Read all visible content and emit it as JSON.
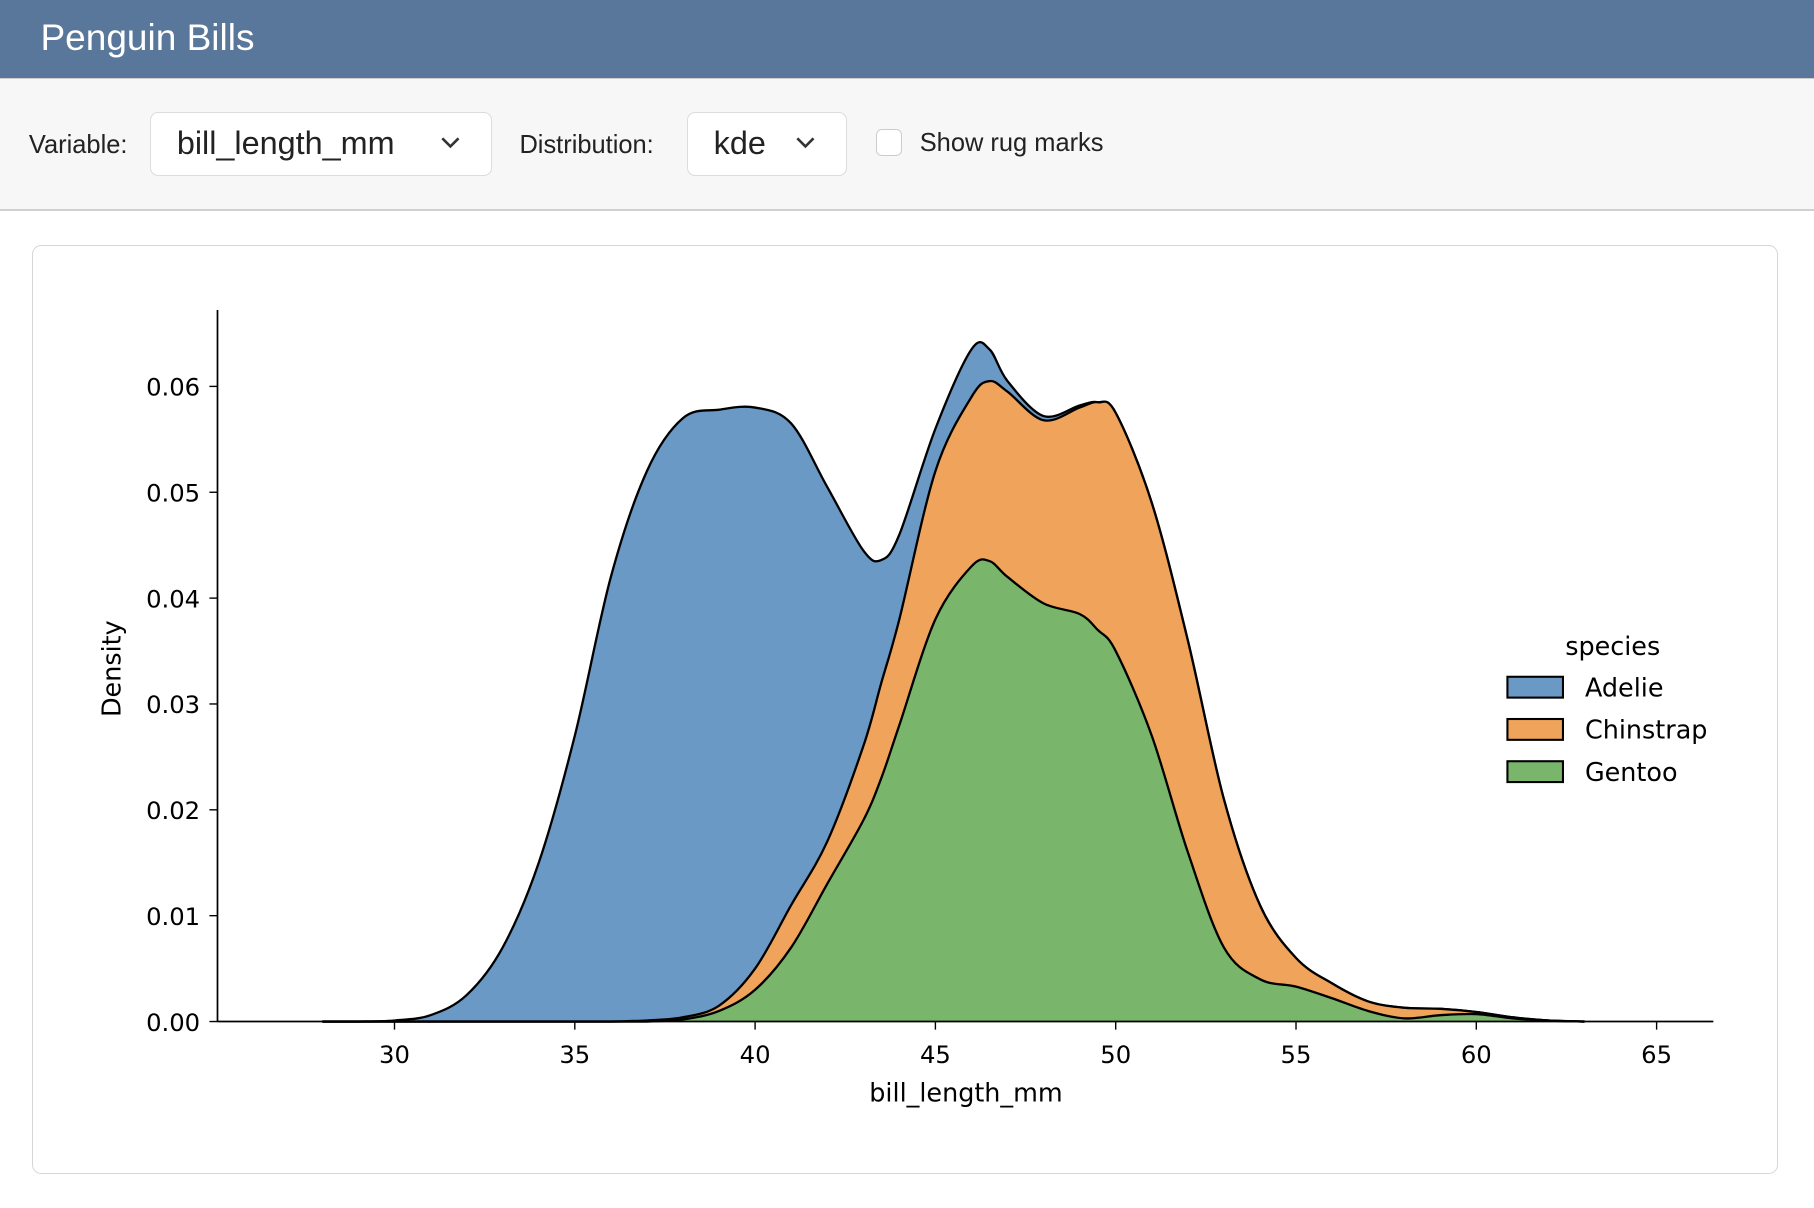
{
  "header": {
    "title": "Penguin Bills"
  },
  "toolbar": {
    "variable_label": "Variable:",
    "variable_value": "bill_length_mm",
    "distribution_label": "Distribution:",
    "distribution_value": "kde",
    "rug_label": "Show rug marks",
    "rug_checked": false
  },
  "chart_data": {
    "type": "area",
    "stacked": true,
    "xlabel": "bill_length_mm",
    "ylabel": "Density",
    "xlim": [
      25,
      66.5
    ],
    "ylim": [
      0,
      0.066
    ],
    "xticks": [
      "30",
      "35",
      "40",
      "45",
      "50",
      "55",
      "60",
      "65"
    ],
    "yticks": [
      "0.00",
      "0.01",
      "0.02",
      "0.03",
      "0.04",
      "0.05",
      "0.06"
    ],
    "legend": {
      "title": "species",
      "position": "right"
    },
    "x": [
      28,
      29,
      30,
      31,
      32,
      33,
      34,
      35,
      36,
      37,
      38,
      39,
      40,
      41,
      42,
      43,
      43.5,
      44,
      45,
      46,
      46.5,
      47,
      48,
      49,
      49.5,
      50,
      51,
      52,
      53,
      54,
      55,
      56,
      57,
      58,
      59,
      60,
      61,
      62,
      63
    ],
    "series": [
      {
        "name": "Adelie",
        "color": "#6a99c5",
        "values": [
          0,
          0,
          0.0001,
          0.0006,
          0.0025,
          0.007,
          0.015,
          0.027,
          0.042,
          0.0519,
          0.0566,
          0.0563,
          0.053,
          0.0455,
          0.0335,
          0.0185,
          0.0116,
          0.008,
          0.004,
          0.0045,
          0.003,
          0.001,
          0.0004,
          0.0002,
          0,
          0,
          0,
          0,
          0,
          0,
          0,
          0,
          0,
          0,
          0,
          0,
          0,
          0,
          0
        ]
      },
      {
        "name": "Chinstrap",
        "color": "#f0a35b",
        "values": [
          0,
          0,
          0,
          0,
          0,
          0,
          0,
          0,
          0,
          0.0001,
          0.0002,
          0.0005,
          0.002,
          0.004,
          0.004,
          0.007,
          0.009,
          0.01,
          0.014,
          0.016,
          0.017,
          0.0175,
          0.0173,
          0.0195,
          0.0215,
          0.0225,
          0.022,
          0.02,
          0.014,
          0.007,
          0.0027,
          0.0014,
          0.0009,
          0.001,
          0.0006,
          0.0002,
          0.0001,
          0,
          0
        ]
      },
      {
        "name": "Gentoo",
        "color": "#79b56b",
        "values": [
          0,
          0,
          0,
          0,
          0,
          0,
          0,
          0,
          0,
          0,
          0.0002,
          0.001,
          0.003,
          0.007,
          0.013,
          0.019,
          0.023,
          0.028,
          0.038,
          0.043,
          0.0435,
          0.042,
          0.0395,
          0.0385,
          0.037,
          0.035,
          0.027,
          0.016,
          0.007,
          0.004,
          0.0033,
          0.0022,
          0.001,
          0.0003,
          0.0006,
          0.0007,
          0.0003,
          0.0001,
          0
        ]
      }
    ]
  }
}
